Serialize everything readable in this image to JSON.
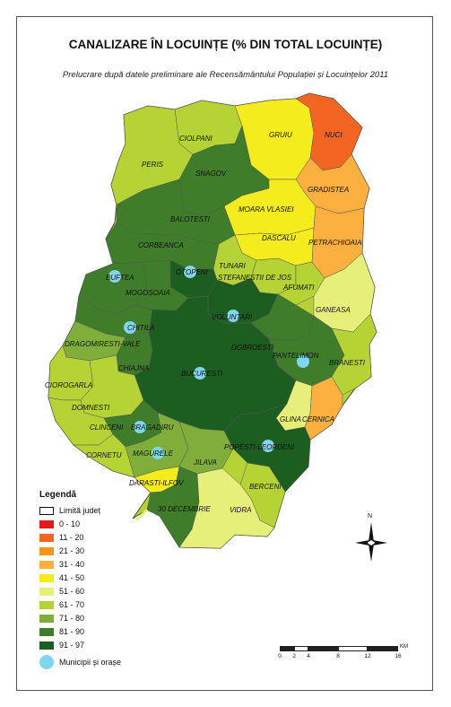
{
  "title": "CANALIZARE ÎN LOCUINȚE (% DIN TOTAL LOCUINȚE)",
  "subtitle": "Prelucrare după datele preliminare ale Recensământului Populației și Locuințelor 2011",
  "colors": {
    "c0_10": "#e31a1c",
    "c11_20": "#f26522",
    "c21_30": "#f7941d",
    "c31_40": "#fbb040",
    "c41_50": "#f5ec1e",
    "c51_60": "#e6ef7a",
    "c61_70": "#b5d334",
    "c71_80": "#7faf3a",
    "c81_90": "#3f7d2a",
    "c91_97": "#1b5e20",
    "city": "#7fd6ee"
  },
  "legend": {
    "title": "Legendă",
    "limit_label": "Limită județ",
    "classes": [
      "0 - 10",
      "11 - 20",
      "21 - 30",
      "31 - 40",
      "41 - 50",
      "51 - 60",
      "61 - 70",
      "71 - 80",
      "81 - 90",
      "91 - 97"
    ],
    "cities_label": "Municipii și orașe"
  },
  "localities": [
    {
      "name": "CIOLPANI",
      "cls": "c61_70"
    },
    {
      "name": "GRUIU",
      "cls": "c41_50"
    },
    {
      "name": "NUCI",
      "cls": "c11_20"
    },
    {
      "name": "PERIS",
      "cls": "c61_70"
    },
    {
      "name": "SNAGOV",
      "cls": "c81_90"
    },
    {
      "name": "GRADISTEA",
      "cls": "c31_40"
    },
    {
      "name": "MOARA VLASIEI",
      "cls": "c41_50"
    },
    {
      "name": "BALOTESTI",
      "cls": "c81_90"
    },
    {
      "name": "DASCALU",
      "cls": "c41_50"
    },
    {
      "name": "PETRACHIOAIA",
      "cls": "c31_40"
    },
    {
      "name": "CORBEANCA",
      "cls": "c81_90"
    },
    {
      "name": "TUNARI",
      "cls": "c61_70"
    },
    {
      "name": "STEFANESTII DE JOS",
      "cls": "c61_70"
    },
    {
      "name": "AFUMATI",
      "cls": "c61_70"
    },
    {
      "name": "BUFTEA",
      "cls": "c81_90"
    },
    {
      "name": "OTOPENI",
      "cls": "c91_97"
    },
    {
      "name": "MOGOSOAIA",
      "cls": "c81_90"
    },
    {
      "name": "GANEASA",
      "cls": "c51_60"
    },
    {
      "name": "CHITILA",
      "cls": "c81_90"
    },
    {
      "name": "VOLUNTARI",
      "cls": "c91_97"
    },
    {
      "name": "DRAGOMIRESTI-VALE",
      "cls": "c71_80"
    },
    {
      "name": "DOBROESTI",
      "cls": "c81_90"
    },
    {
      "name": "PANTELIMON",
      "cls": "c81_90"
    },
    {
      "name": "BRANESTI",
      "cls": "c61_70"
    },
    {
      "name": "CHIAJNA",
      "cls": "c81_90"
    },
    {
      "name": "BUCURESTI",
      "cls": "c91_97"
    },
    {
      "name": "CIOROGARLA",
      "cls": "c61_70"
    },
    {
      "name": "DOMNESTI",
      "cls": "c61_70"
    },
    {
      "name": "GLINA",
      "cls": "c51_60"
    },
    {
      "name": "CERNICA",
      "cls": "c31_40"
    },
    {
      "name": "CLINCENI",
      "cls": "c61_70"
    },
    {
      "name": "BRAGADIRU",
      "cls": "c81_90"
    },
    {
      "name": "CORNETU",
      "cls": "c61_70"
    },
    {
      "name": "MAGURELE",
      "cls": "c71_80"
    },
    {
      "name": "POPESTI-LEORDENI",
      "cls": "c91_97"
    },
    {
      "name": "JILAVA",
      "cls": "c71_80"
    },
    {
      "name": "DARASTI-ILFOV",
      "cls": "c41_50"
    },
    {
      "name": "BERCENI",
      "cls": "c61_70"
    },
    {
      "name": "30 DECEMBRIE",
      "cls": "c81_90"
    },
    {
      "name": "VIDRA",
      "cls": "c51_60"
    }
  ],
  "compass": {
    "north_label": "N"
  },
  "scale": {
    "ticks": [
      "0",
      "2",
      "4",
      "8",
      "12",
      "16"
    ],
    "unit": "KM"
  }
}
